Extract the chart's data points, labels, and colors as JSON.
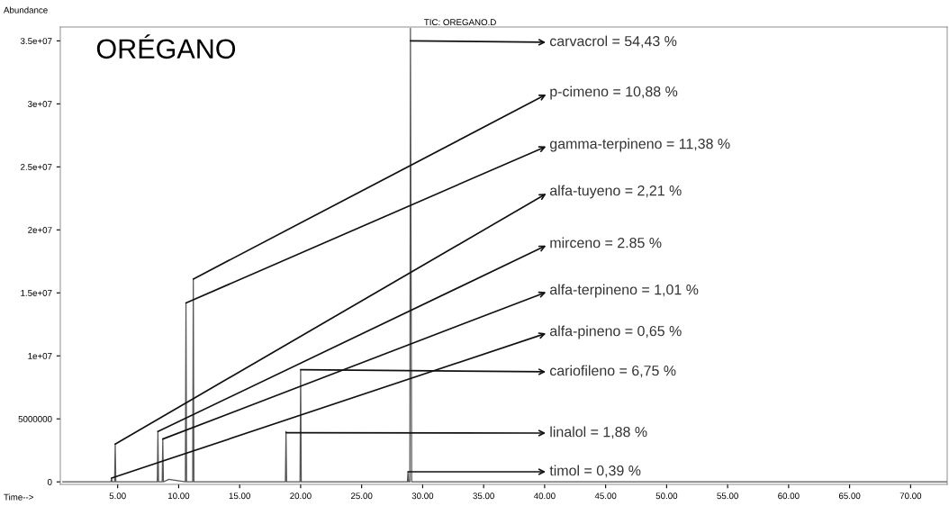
{
  "chart_data": {
    "type": "line",
    "title": "ORÉGANO",
    "subtitle": "TIC: OREGANO.D",
    "xlabel": "Time-->",
    "ylabel": "Abundance",
    "x": [
      0.5,
      4.0,
      4.45,
      4.5,
      4.55,
      4.75,
      4.8,
      4.85,
      6.0,
      7.0,
      8.25,
      8.3,
      8.35,
      8.5,
      8.65,
      8.7,
      8.75,
      9.2,
      10.55,
      10.6,
      10.65,
      10.9,
      11.15,
      11.2,
      11.25,
      13.0,
      15.0,
      17.0,
      18.75,
      18.8,
      18.85,
      19.5,
      19.95,
      20.0,
      20.05,
      22.0,
      25.0,
      27.0,
      28.75,
      28.8,
      28.85,
      28.95,
      29.0,
      29.1,
      31.0,
      35.0,
      40.0,
      50.0,
      60.0,
      73.0
    ],
    "values": [
      0,
      0,
      0,
      300000,
      0,
      0,
      3000000,
      0,
      0,
      0,
      0,
      4000000,
      0,
      0,
      0,
      3400000,
      0,
      200000,
      0,
      14200000,
      0,
      0,
      0,
      16100000,
      0,
      0,
      0,
      0,
      0,
      4000000,
      0,
      0,
      0,
      8900000,
      0,
      0,
      0,
      0,
      0,
      800000,
      0,
      0,
      36000000,
      0,
      0,
      0,
      0,
      0,
      0,
      0
    ],
    "color": "#555555",
    "xlim": [
      0.3,
      73
    ],
    "ylim": [
      -200000,
      36100000
    ],
    "xticks": [
      {
        "value": 5,
        "label": "5.00"
      },
      {
        "value": 10,
        "label": "10.00"
      },
      {
        "value": 15,
        "label": "15.00"
      },
      {
        "value": 20,
        "label": "20.00"
      },
      {
        "value": 25,
        "label": "25.00"
      },
      {
        "value": 30,
        "label": "30.00"
      },
      {
        "value": 35,
        "label": "35.00"
      },
      {
        "value": 40,
        "label": "40.00"
      },
      {
        "value": 45,
        "label": "45.00"
      },
      {
        "value": 50,
        "label": "50.00"
      },
      {
        "value": 55,
        "label": "55.00"
      },
      {
        "value": 60,
        "label": "60.00"
      },
      {
        "value": 65,
        "label": "65.00"
      },
      {
        "value": 70,
        "label": "70.00"
      }
    ],
    "yticks": [
      0,
      5000000,
      {
        "value": 10000000,
        "label": "1e+07"
      },
      {
        "value": 15000000,
        "label": "1.5e+07"
      },
      {
        "value": 20000000,
        "label": "2e+07"
      },
      {
        "value": 25000000,
        "label": "2.5e+07"
      },
      {
        "value": 30000000,
        "label": "3e+07"
      },
      {
        "value": 35000000,
        "label": "3.5e+07"
      }
    ],
    "grid": false,
    "legend": false,
    "marker": "none",
    "line_style": "solid",
    "annotations": [
      {
        "text": "carvacrol = 54,43 %",
        "x": 29.0,
        "y": 35000000
      },
      {
        "text": "p-cimeno = 10,88 %",
        "x": 11.2,
        "y": 16100000
      },
      {
        "text": "gamma-terpineno = 11,38 %",
        "x": 10.6,
        "y": 14200000
      },
      {
        "text": "alfa-tuyeno = 2,21 %",
        "x": 4.8,
        "y": 3000000
      },
      {
        "text": "mirceno = 2.85 %",
        "x": 8.3,
        "y": 4000000
      },
      {
        "text": "alfa-terpineno = 1,01 %",
        "x": 8.7,
        "y": 3400000
      },
      {
        "text": "alfa-pineno = 0,65 %",
        "x": 4.5,
        "y": 300000
      },
      {
        "text": "cariofileno = 6,75 %",
        "x": 20.0,
        "y": 8900000
      },
      {
        "text": "linalol = 1,88 %",
        "x": 18.8,
        "y": 3900000
      },
      {
        "text": "timol = 0,39 %",
        "x": 28.8,
        "y": 800000
      }
    ]
  }
}
